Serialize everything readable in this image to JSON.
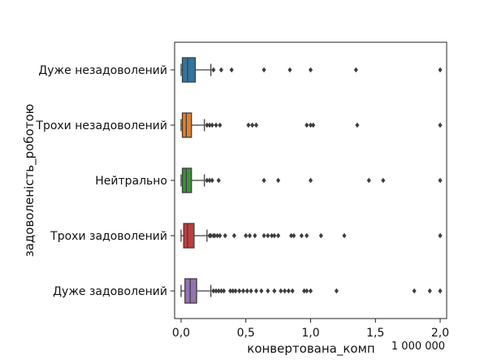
{
  "chart_data": {
    "type": "boxplot",
    "orientation": "horizontal",
    "xlabel": "конвертована_комп",
    "ylabel": "задоволеність_роботою",
    "x_offset_text": "1 000 000",
    "xlim": [
      -0.05,
      2.05
    ],
    "xticks": [
      0.0,
      0.5,
      1.0,
      1.5,
      2.0
    ],
    "xtick_labels": [
      "0,0",
      "0,5",
      "1,0",
      "1,5",
      "2,0"
    ],
    "grid": false,
    "legend": "none",
    "categories": [
      "Дуже незадоволений",
      "Трохи незадоволений",
      "Нейтрально",
      "Трохи задоволений",
      "Дуже задоволений"
    ],
    "boxes": [
      {
        "category": "Дуже незадоволений",
        "color": "#3274a1",
        "whisker_low": 0.0,
        "q1": 0.01,
        "median": 0.05,
        "q3": 0.11,
        "whisker_high": 0.23,
        "outliers": [
          0.25,
          0.31,
          0.39,
          0.64,
          0.84,
          1.0,
          1.35,
          2.0
        ]
      },
      {
        "category": "Трохи незадоволений",
        "color": "#e1812c",
        "whisker_low": 0.0,
        "q1": 0.01,
        "median": 0.04,
        "q3": 0.08,
        "whisker_high": 0.18,
        "outliers": [
          0.2,
          0.22,
          0.24,
          0.27,
          0.3,
          0.52,
          0.55,
          0.58,
          0.97,
          1.0,
          1.02,
          1.36,
          2.0
        ]
      },
      {
        "category": "Нейтрально",
        "color": "#3a923a",
        "whisker_low": 0.0,
        "q1": 0.01,
        "median": 0.04,
        "q3": 0.08,
        "whisker_high": 0.18,
        "outliers": [
          0.2,
          0.22,
          0.24,
          0.29,
          0.64,
          0.75,
          1.0,
          1.45,
          1.56,
          2.0
        ]
      },
      {
        "category": "Трохи задоволений",
        "color": "#c03d3e",
        "whisker_low": 0.0,
        "q1": 0.02,
        "median": 0.05,
        "q3": 0.1,
        "whisker_high": 0.2,
        "outliers": [
          0.22,
          0.23,
          0.25,
          0.26,
          0.28,
          0.3,
          0.34,
          0.41,
          0.5,
          0.53,
          0.57,
          0.64,
          0.67,
          0.7,
          0.72,
          0.75,
          0.85,
          0.87,
          0.93,
          0.97,
          1.08,
          1.26,
          2.0
        ]
      },
      {
        "category": "Дуже задоволений",
        "color": "#9372b2",
        "whisker_low": 0.0,
        "q1": 0.03,
        "median": 0.07,
        "q3": 0.12,
        "whisker_high": 0.23,
        "outliers": [
          0.25,
          0.27,
          0.29,
          0.31,
          0.33,
          0.38,
          0.4,
          0.42,
          0.45,
          0.48,
          0.51,
          0.54,
          0.58,
          0.62,
          0.67,
          0.72,
          0.77,
          0.8,
          0.83,
          0.86,
          0.95,
          0.97,
          1.0,
          1.2,
          1.8,
          1.92,
          2.0
        ]
      }
    ]
  }
}
